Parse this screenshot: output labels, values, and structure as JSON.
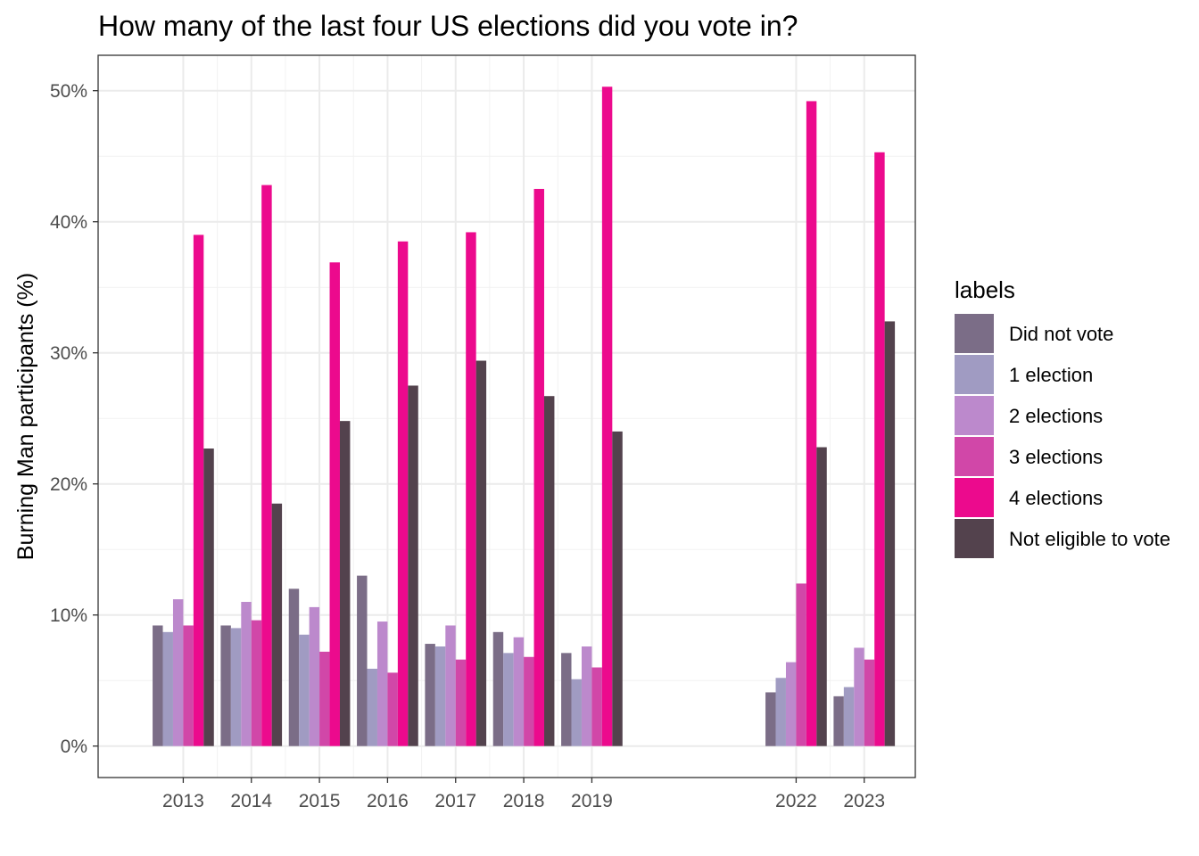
{
  "chart_data": {
    "type": "bar",
    "title": "How many of the last four US elections did you vote in?",
    "xlabel": "",
    "ylabel": "Burning Man participants (%)",
    "ylim": [
      -2.4,
      52.7
    ],
    "yticks": [
      0,
      10,
      20,
      30,
      40,
      50
    ],
    "ytick_labels": [
      "0%",
      "10%",
      "20%",
      "30%",
      "40%",
      "50%"
    ],
    "xlim": [
      2011.75,
      2023.75
    ],
    "x": [
      2013,
      2014,
      2015,
      2016,
      2017,
      2018,
      2019,
      2022,
      2023
    ],
    "categories": [
      "2013",
      "2014",
      "2015",
      "2016",
      "2017",
      "2018",
      "2019",
      "2022",
      "2023"
    ],
    "grid": true,
    "legend": {
      "title": "labels",
      "placement": "right"
    },
    "series": [
      {
        "name": "Did not vote",
        "color": "#7b6d87",
        "values": [
          9.2,
          9.2,
          12.0,
          13.0,
          7.8,
          8.7,
          7.1,
          4.1,
          3.8
        ]
      },
      {
        "name": "1 election",
        "color": "#a09bc2",
        "values": [
          8.7,
          9.0,
          8.5,
          5.9,
          7.6,
          7.1,
          5.1,
          5.2,
          4.5
        ]
      },
      {
        "name": "2 elections",
        "color": "#bc89cc",
        "values": [
          11.2,
          11.0,
          10.6,
          9.5,
          9.2,
          8.3,
          7.6,
          6.4,
          7.5
        ]
      },
      {
        "name": "3 elections",
        "color": "#d147a8",
        "values": [
          9.2,
          9.6,
          7.2,
          5.6,
          6.6,
          6.8,
          6.0,
          12.4,
          6.6
        ]
      },
      {
        "name": "4 elections",
        "color": "#ec0a8d",
        "values": [
          39.0,
          42.8,
          36.9,
          38.5,
          39.2,
          42.5,
          50.3,
          49.2,
          45.3
        ]
      },
      {
        "name": "Not eligible to vote",
        "color": "#53424d",
        "values": [
          22.7,
          18.5,
          24.8,
          27.5,
          29.4,
          26.7,
          24.0,
          22.8,
          32.4
        ]
      }
    ]
  }
}
